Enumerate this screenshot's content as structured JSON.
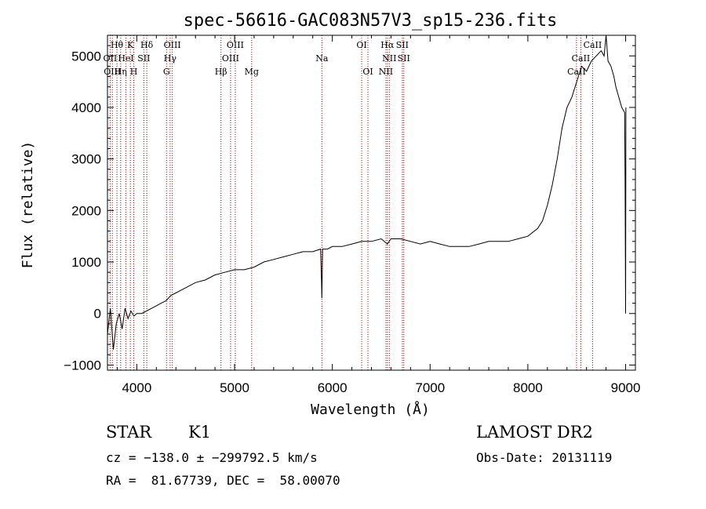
{
  "chart_data": {
    "type": "line",
    "title": "spec-56616-GAC083N57V3_sp15-236.fits",
    "xlabel": "Wavelength (Å)",
    "ylabel": "Flux (relative)",
    "xlim": [
      3700,
      9100
    ],
    "ylim": [
      -1100,
      5400
    ],
    "xticks": [
      4000,
      5000,
      6000,
      7000,
      8000,
      9000
    ],
    "yticks": [
      -1000,
      0,
      1000,
      2000,
      3000,
      4000,
      5000
    ],
    "grid": false,
    "spectrum": {
      "x": [
        3700,
        3730,
        3760,
        3790,
        3820,
        3850,
        3880,
        3910,
        3940,
        3970,
        4000,
        4050,
        4100,
        4150,
        4200,
        4250,
        4300,
        4350,
        4400,
        4450,
        4500,
        4600,
        4700,
        4800,
        4900,
        5000,
        5100,
        5200,
        5300,
        5400,
        5500,
        5600,
        5700,
        5800,
        5880,
        5890,
        5893,
        5896,
        5900,
        5950,
        6000,
        6100,
        6200,
        6300,
        6400,
        6500,
        6563,
        6600,
        6700,
        6800,
        6900,
        7000,
        7100,
        7200,
        7300,
        7400,
        7500,
        7600,
        7700,
        7800,
        7900,
        8000,
        8100,
        8150,
        8200,
        8250,
        8300,
        8350,
        8400,
        8450,
        8500,
        8550,
        8600,
        8650,
        8700,
        8750,
        8780,
        8800,
        8820,
        8850,
        8880,
        8900,
        8930,
        8960,
        8990,
        8995,
        9000,
        9003
      ],
      "y": [
        -400,
        100,
        -700,
        -200,
        0,
        -300,
        100,
        -100,
        50,
        -50,
        0,
        0,
        50,
        100,
        150,
        200,
        250,
        350,
        400,
        450,
        500,
        600,
        650,
        750,
        800,
        850,
        850,
        900,
        1000,
        1050,
        1100,
        1150,
        1200,
        1200,
        1250,
        600,
        300,
        700,
        1250,
        1250,
        1300,
        1300,
        1350,
        1400,
        1400,
        1450,
        1350,
        1450,
        1450,
        1400,
        1350,
        1400,
        1350,
        1300,
        1300,
        1300,
        1350,
        1400,
        1400,
        1400,
        1450,
        1500,
        1650,
        1800,
        2100,
        2500,
        3000,
        3600,
        4000,
        4200,
        4500,
        4800,
        4700,
        4900,
        5000,
        5100,
        5000,
        5400,
        4900,
        4800,
        4600,
        4400,
        4200,
        4000,
        3900,
        2500,
        0,
        4000
      ]
    },
    "lines": [
      {
        "wave": 3727,
        "label": "OII"
      },
      {
        "wave": 3750,
        "label": "OIII"
      },
      {
        "wave": 3797,
        "label": "Hθ"
      },
      {
        "wave": 3835,
        "label": "Hη"
      },
      {
        "wave": 3889,
        "label": "HeI"
      },
      {
        "wave": 3934,
        "label": "K"
      },
      {
        "wave": 3969,
        "label": "H"
      },
      {
        "wave": 4072,
        "label": "SII"
      },
      {
        "wave": 4102,
        "label": "Hδ"
      },
      {
        "wave": 4304,
        "label": "G"
      },
      {
        "wave": 4341,
        "label": "Hγ"
      },
      {
        "wave": 4363,
        "label": "OIII"
      },
      {
        "wave": 4861,
        "label": "Hβ"
      },
      {
        "wave": 4959,
        "label": "OIII"
      },
      {
        "wave": 5007,
        "label": "OIII"
      },
      {
        "wave": 5175,
        "label": "Mg"
      },
      {
        "wave": 5893,
        "label": "Na"
      },
      {
        "wave": 6300,
        "label": "OI"
      },
      {
        "wave": 6364,
        "label": "OI"
      },
      {
        "wave": 6548,
        "label": "NII"
      },
      {
        "wave": 6563,
        "label": "Hα"
      },
      {
        "wave": 6583,
        "label": "NII"
      },
      {
        "wave": 6716,
        "label": "SII"
      },
      {
        "wave": 6731,
        "label": "SII"
      },
      {
        "wave": 8498,
        "label": "CaII"
      },
      {
        "wave": 8542,
        "label": "CaII"
      },
      {
        "wave": 8662,
        "label": "CaII"
      }
    ],
    "line_labels": [
      {
        "text": "Hθ",
        "wave": 3797,
        "row": 1
      },
      {
        "text": "K",
        "wave": 3934,
        "row": 1
      },
      {
        "text": "Hδ",
        "wave": 4102,
        "row": 1
      },
      {
        "text": "OIII",
        "wave": 4363,
        "row": 1
      },
      {
        "text": "OIII",
        "wave": 5007,
        "row": 1
      },
      {
        "text": "OI",
        "wave": 6300,
        "row": 1
      },
      {
        "text": "Hα",
        "wave": 6563,
        "row": 1
      },
      {
        "text": "SII",
        "wave": 6716,
        "row": 1
      },
      {
        "text": "CaII",
        "wave": 8662,
        "row": 1
      },
      {
        "text": "OII",
        "wave": 3727,
        "row": 2
      },
      {
        "text": "HeI",
        "wave": 3889,
        "row": 2
      },
      {
        "text": "SII",
        "wave": 4072,
        "row": 2
      },
      {
        "text": "Hγ",
        "wave": 4341,
        "row": 2
      },
      {
        "text": "OIII",
        "wave": 4959,
        "row": 2
      },
      {
        "text": "Na",
        "wave": 5893,
        "row": 2
      },
      {
        "text": "NII",
        "wave": 6583,
        "row": 2
      },
      {
        "text": "SII",
        "wave": 6731,
        "row": 2
      },
      {
        "text": "CaII",
        "wave": 8542,
        "row": 2
      },
      {
        "text": "OIII",
        "wave": 3750,
        "row": 3
      },
      {
        "text": "Hη",
        "wave": 3835,
        "row": 3
      },
      {
        "text": "H",
        "wave": 3969,
        "row": 3
      },
      {
        "text": "G",
        "wave": 4304,
        "row": 3
      },
      {
        "text": "Hβ",
        "wave": 4861,
        "row": 3
      },
      {
        "text": "Mg",
        "wave": 5175,
        "row": 3
      },
      {
        "text": "OI",
        "wave": 6364,
        "row": 3
      },
      {
        "text": "NII",
        "wave": 6548,
        "row": 3
      },
      {
        "text": "CaII",
        "wave": 8498,
        "row": 3
      }
    ],
    "colors": {
      "spectrum": "#000000",
      "line_marker": "#aa0000",
      "axis": "#000000"
    }
  },
  "info": {
    "object_class": "STAR",
    "subclass": "K1",
    "survey": "LAMOST DR2",
    "redshift_text": "cz = −138.0 ± −299792.5 km/s",
    "obs_date": "Obs-Date: 20131119",
    "coords": "RA =  81.67739, DEC =  58.00070"
  }
}
